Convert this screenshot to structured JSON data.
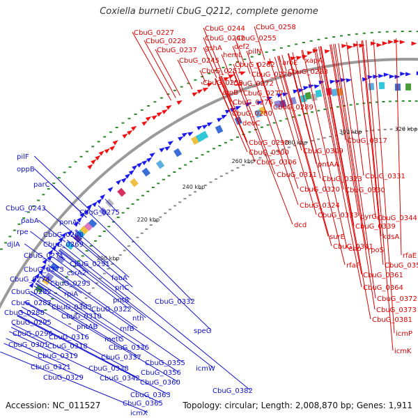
{
  "title": "Coxiella burnetii CbuG_Q212, complete genome",
  "footer": {
    "accession": "Accession: NC_011527",
    "summary": "Topology: circular; Length: 2,008,870 bp; Genes: 1,911"
  },
  "colors": {
    "backbone": "#9a9a9a",
    "forward_genes": "#ee1111",
    "reverse_genes": "#1a1aee",
    "forward_labels": "#dd0000",
    "reverse_labels": "#1111cc",
    "dots": "#2a8a2a"
  },
  "ticks": [
    "200 kbp",
    "220 kbp",
    "240 kbp",
    "260 kbp",
    "280 kbp",
    "300 kbp",
    "320 kbp",
    "340 kbp"
  ],
  "forward_labels": [
    "CbuG_0227",
    "CbuG_0244",
    "CbuG_0258",
    "CbuG_0228",
    "CbuG_0242",
    "def2",
    "CbuG_0255",
    "CbuG_0237",
    "gshA",
    "pilN",
    "hemL",
    "CbuG_0245",
    "aroE",
    "xapA",
    "CbuG_0262",
    "CbuG_0251",
    "CbuG_0270",
    "CbuG_0283",
    "CbuG_0259",
    "CbuG_0272",
    "aroB",
    "CbuG_0277",
    "CbuG_0276",
    "CbuG_0289",
    "CbuG_0280",
    "deoC",
    "CbuG_0290",
    "CbuG_0317",
    "CbuG_0309",
    "CbuG_0300",
    "CbuG_0306",
    "pntAA",
    "CbuG_0311",
    "CbuG_0323",
    "CbuG_0331",
    "CbuG_0320",
    "CbuG_0330",
    "CbuG_0324",
    "CbuG_0333",
    "pyrG",
    "CbuG_0344",
    "dcd",
    "CbuG_0339",
    "kdsA",
    "surE",
    "CbuG_0341",
    "eno",
    "rpoS",
    "rfaE",
    "rfaF",
    "CbuG_0357",
    "CbuG_0361",
    "CbuG_0364",
    "CbuG_0372",
    "CbuG_0373",
    "CbuG_0381",
    "icmP",
    "icmK"
  ],
  "reverse_labels": [
    "pilF",
    "oppB",
    "parC",
    "CbuG_0243",
    "pabA",
    "rpe",
    "djlA",
    "ponA",
    "CbuG_0275",
    "CbuG_0268",
    "CbuG_0269",
    "CbuG_0271",
    "CbuG_0273",
    "CbuG_0291",
    "CbuG_0274",
    "csrA2",
    "CbuG_0293",
    "CbuG_0282",
    "rpiA",
    "fabA",
    "CbuG_0287",
    "prlC",
    "CbuG_0303",
    "CbuG_0288",
    "pntB",
    "CbuG_0332",
    "CbuG_0310",
    "CbuG_0322",
    "CbuG_0295",
    "nth",
    "pntAB",
    "CbuG_0296",
    "rnfB",
    "CbuG_0316",
    "metG",
    "speG",
    "CbuG_0301",
    "CbuG_0318",
    "CbuG_0336",
    "CbuG_0319",
    "CbuG_0337",
    "CbuG_0321",
    "CbuG_0338",
    "CbuG_0355",
    "CbuG_0356",
    "icmW",
    "CbuG_0329",
    "CbuG_0342",
    "CbuG_0360",
    "CbuG_0382",
    "CbuG_0363",
    "CbuG_0365",
    "icmX"
  ]
}
